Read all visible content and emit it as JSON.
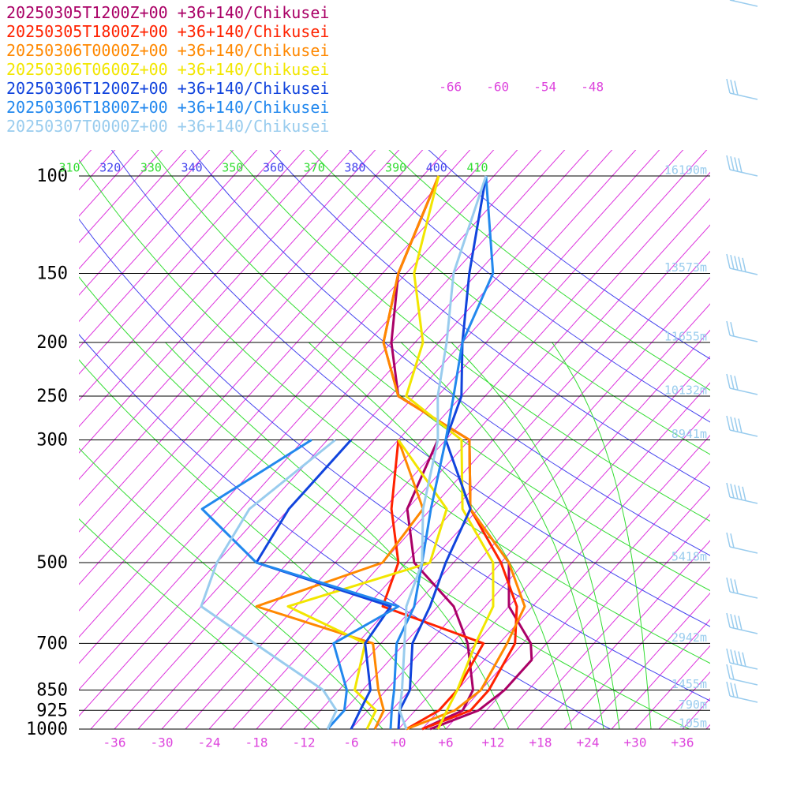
{
  "chart_data": {
    "type": "line",
    "title": "",
    "xlabel": "",
    "ylabel": "",
    "x_scale": "skew-T (skewed temperature)",
    "y_scale": "log pressure",
    "xlim": [
      -40,
      40
    ],
    "ylim": [
      1000,
      100
    ],
    "x_ticks": [
      "-36",
      "-30",
      "-24",
      "-18",
      "-12",
      "-6",
      "+0",
      "+6",
      "+12",
      "+18",
      "+24",
      "+30",
      "+36"
    ],
    "pressure_ticks": [
      "100",
      "150",
      "200",
      "250",
      "300",
      "500",
      "700",
      "850",
      "925",
      "1000"
    ],
    "upper_temperature_ticks": [
      "-66",
      "-60",
      "-54",
      "-48"
    ],
    "theta_labels": [
      "310",
      "320",
      "330",
      "340",
      "350",
      "360",
      "370",
      "380",
      "390",
      "400",
      "410"
    ],
    "height_labels": [
      {
        "p": 100,
        "text": "16190m"
      },
      {
        "p": 150,
        "text": "13573m"
      },
      {
        "p": 200,
        "text": "11655m"
      },
      {
        "p": 250,
        "text": "10132m"
      },
      {
        "p": 300,
        "text": "8941m"
      },
      {
        "p": 500,
        "text": "5418m"
      },
      {
        "p": 700,
        "text": "2942m"
      },
      {
        "p": 850,
        "text": "1455m"
      },
      {
        "p": 925,
        "text": "790m"
      },
      {
        "p": 1000,
        "text": "105m"
      }
    ],
    "grid": true,
    "legend_position": "top-left",
    "series": [
      {
        "name": "20250305T1200Z+00 +36+140/Chikusei",
        "color": "#aa0066",
        "temperature": [
          [
            1000,
            4
          ],
          [
            925,
            8
          ],
          [
            850,
            9
          ],
          [
            750,
            9
          ],
          [
            700,
            7
          ],
          [
            600,
            0
          ],
          [
            500,
            -5
          ],
          [
            400,
            -16
          ],
          [
            300,
            -24
          ],
          [
            250,
            -38
          ],
          [
            200,
            -45
          ],
          [
            150,
            -52
          ],
          [
            100,
            -58
          ]
        ],
        "dewpoint": [
          [
            1000,
            3
          ],
          [
            925,
            6
          ],
          [
            850,
            5
          ],
          [
            700,
            -1
          ],
          [
            600,
            -7
          ],
          [
            500,
            -17
          ],
          [
            400,
            -24
          ],
          [
            300,
            -28
          ]
        ]
      },
      {
        "name": "20250305T1800Z+00 +36+140/Chikusei",
        "color": "#ff2200",
        "temperature": [
          [
            1000,
            3
          ],
          [
            925,
            7
          ],
          [
            850,
            7
          ],
          [
            700,
            5
          ],
          [
            600,
            1
          ],
          [
            500,
            -6
          ],
          [
            400,
            -16
          ],
          [
            300,
            -24
          ],
          [
            250,
            -38
          ],
          [
            200,
            -46
          ],
          [
            150,
            -52
          ],
          [
            100,
            -58
          ]
        ],
        "dewpoint": [
          [
            1000,
            1
          ],
          [
            925,
            3
          ],
          [
            850,
            3
          ],
          [
            700,
            1
          ],
          [
            600,
            -16
          ],
          [
            500,
            -19
          ],
          [
            400,
            -26
          ],
          [
            300,
            -33
          ]
        ]
      },
      {
        "name": "20250306T0000Z+00 +36+140/Chikusei",
        "color": "#ff8800",
        "temperature": [
          [
            1000,
            1
          ],
          [
            925,
            5
          ],
          [
            850,
            6
          ],
          [
            700,
            4
          ],
          [
            600,
            2
          ],
          [
            500,
            -5
          ],
          [
            400,
            -16
          ],
          [
            300,
            -24
          ],
          [
            250,
            -38
          ],
          [
            200,
            -46
          ],
          [
            150,
            -52
          ],
          [
            100,
            -58
          ]
        ],
        "dewpoint": [
          [
            1000,
            -3
          ],
          [
            925,
            -4
          ],
          [
            850,
            -7
          ],
          [
            700,
            -13
          ],
          [
            600,
            -32
          ],
          [
            500,
            -21
          ],
          [
            400,
            -22
          ],
          [
            300,
            -33
          ]
        ]
      },
      {
        "name": "20250306T0600Z+00 +36+140/Chikusei",
        "color": "#f2e600",
        "temperature": [
          [
            1000,
            5
          ],
          [
            925,
            4
          ],
          [
            850,
            3
          ],
          [
            700,
            0
          ],
          [
            600,
            -2
          ],
          [
            500,
            -7
          ],
          [
            400,
            -17
          ],
          [
            300,
            -25
          ],
          [
            250,
            -37
          ],
          [
            200,
            -41
          ],
          [
            150,
            -50
          ],
          [
            100,
            -58
          ]
        ],
        "dewpoint": [
          [
            1000,
            -4
          ],
          [
            925,
            -5
          ],
          [
            850,
            -10
          ],
          [
            700,
            -14
          ],
          [
            600,
            -28
          ],
          [
            500,
            -15
          ],
          [
            400,
            -19
          ],
          [
            300,
            -33
          ]
        ]
      },
      {
        "name": "20250306T1200Z+00 +36+140/Chikusei",
        "color": "#1144dd",
        "temperature": [
          [
            1000,
            0
          ],
          [
            925,
            -2
          ],
          [
            850,
            -3
          ],
          [
            700,
            -8
          ],
          [
            600,
            -10
          ],
          [
            500,
            -13
          ],
          [
            400,
            -16
          ],
          [
            300,
            -27
          ],
          [
            250,
            -30
          ],
          [
            200,
            -36
          ],
          [
            150,
            -43
          ],
          [
            100,
            -52
          ]
        ],
        "dewpoint": [
          [
            1000,
            -6
          ],
          [
            925,
            -7
          ],
          [
            850,
            -8
          ],
          [
            700,
            -14
          ],
          [
            600,
            -15
          ],
          [
            500,
            -37
          ],
          [
            400,
            -39
          ],
          [
            300,
            -39
          ]
        ]
      },
      {
        "name": "20250306T1800Z+00 +36+140/Chikusei",
        "color": "#2288ee",
        "temperature": [
          [
            1000,
            -1
          ],
          [
            925,
            -3
          ],
          [
            850,
            -5
          ],
          [
            700,
            -10
          ],
          [
            600,
            -12
          ],
          [
            500,
            -16
          ],
          [
            400,
            -21
          ],
          [
            300,
            -27
          ],
          [
            250,
            -31
          ],
          [
            200,
            -36
          ],
          [
            150,
            -40
          ],
          [
            100,
            -52
          ]
        ],
        "dewpoint": [
          [
            1000,
            -9
          ],
          [
            925,
            -9
          ],
          [
            850,
            -11
          ],
          [
            700,
            -18
          ],
          [
            600,
            -14
          ],
          [
            500,
            -37
          ],
          [
            400,
            -50
          ],
          [
            300,
            -44
          ]
        ]
      },
      {
        "name": "20250307T0000Z+00 +36+140/Chikusei",
        "color": "#99ccee",
        "temperature": [
          [
            1000,
            1
          ],
          [
            925,
            -2
          ],
          [
            850,
            -4
          ],
          [
            700,
            -9
          ],
          [
            600,
            -13
          ],
          [
            500,
            -16
          ],
          [
            400,
            -22
          ],
          [
            300,
            -28
          ],
          [
            250,
            -33
          ],
          [
            200,
            -38
          ],
          [
            150,
            -45
          ],
          [
            100,
            -52
          ]
        ],
        "dewpoint": [
          [
            1000,
            -9
          ],
          [
            925,
            -10
          ],
          [
            850,
            -14
          ],
          [
            700,
            -28
          ],
          [
            600,
            -39
          ],
          [
            500,
            -42
          ],
          [
            400,
            -44
          ],
          [
            300,
            -41
          ]
        ]
      }
    ]
  }
}
